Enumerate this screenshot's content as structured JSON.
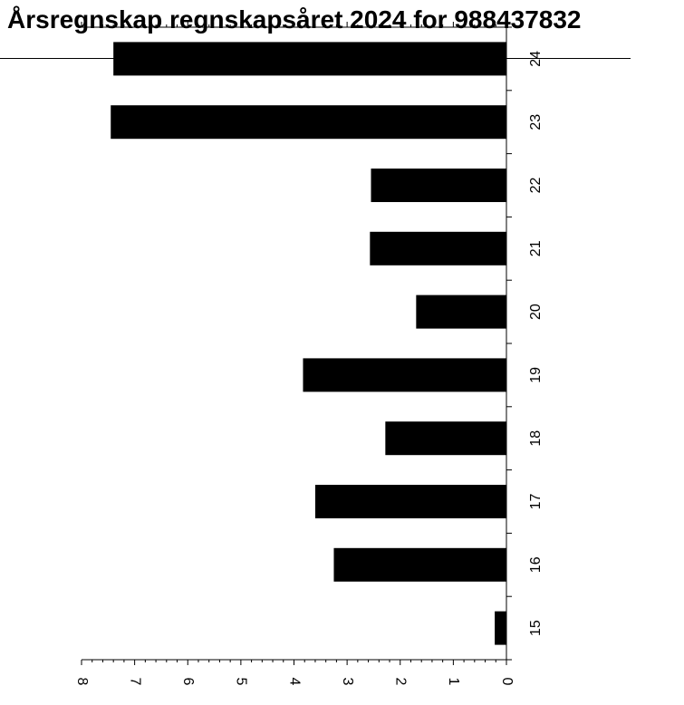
{
  "chart_data": {
    "type": "bar",
    "orientation": "rotated-90",
    "title": "Årsregnskap regnskapsåret 2024 for 988437832",
    "categories": [
      "15",
      "16",
      "17",
      "18",
      "19",
      "20",
      "21",
      "22",
      "23",
      "24"
    ],
    "values": [
      0.22,
      3.25,
      3.6,
      2.28,
      3.83,
      1.7,
      2.57,
      2.55,
      7.45,
      7.4
    ],
    "ylim": [
      0,
      8
    ],
    "yticks": [
      "0",
      "1",
      "2",
      "3",
      "4",
      "5",
      "6",
      "7",
      "8"
    ],
    "bar_color": "#000000",
    "grid": false
  }
}
